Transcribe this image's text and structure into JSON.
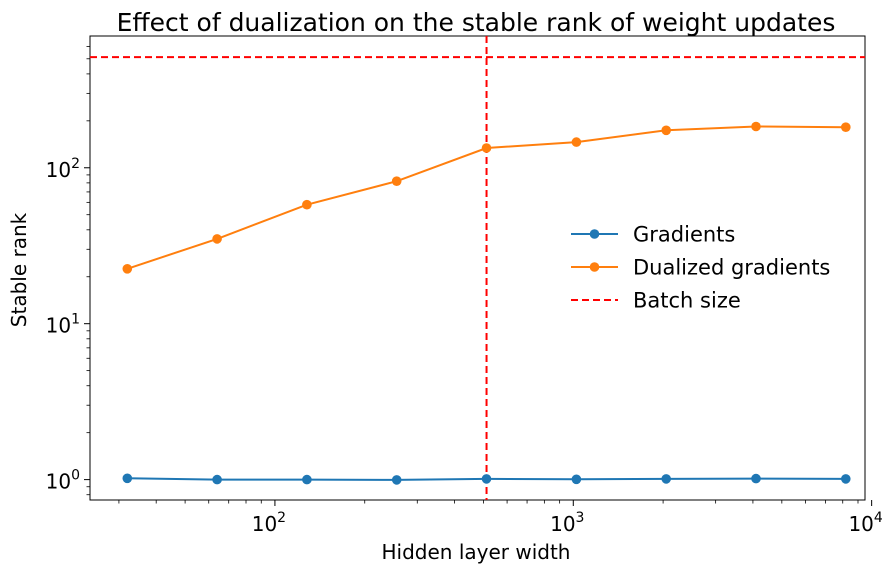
{
  "chart_data": {
    "type": "line",
    "title": "Effect of dualization on the stable rank of weight updates",
    "xlabel": "Hidden layer width",
    "ylabel": "Stable rank",
    "xscale": "log",
    "yscale": "log",
    "xlim": [
      24,
      9500
    ],
    "ylim": [
      0.74,
      700
    ],
    "x": [
      32,
      64,
      128,
      256,
      512,
      1024,
      2048,
      4096,
      8192
    ],
    "series": [
      {
        "name": "Gradients",
        "color": "#1f77b4",
        "marker": "circle",
        "values": [
          1.02,
          1.0,
          1.0,
          0.995,
          1.01,
          1.005,
          1.01,
          1.015,
          1.01
        ]
      },
      {
        "name": "Dualized gradients",
        "color": "#ff7f0e",
        "marker": "circle",
        "values": [
          22.5,
          35,
          58,
          82,
          134,
          146,
          174,
          184,
          182
        ]
      }
    ],
    "reference_lines": [
      {
        "name": "Batch size",
        "orientation": "horizontal",
        "value": 512,
        "color": "#ff0000",
        "style": "dashed"
      },
      {
        "orientation": "vertical",
        "value": 512,
        "color": "#ff0000",
        "style": "dashed"
      }
    ],
    "x_ticks": [
      {
        "value": 100,
        "base": "10",
        "exp": "2"
      },
      {
        "value": 1000,
        "base": "10",
        "exp": "3"
      },
      {
        "value": 10000,
        "base": "10",
        "exp": "4"
      }
    ],
    "y_ticks": [
      {
        "value": 1,
        "base": "10",
        "exp": "0"
      },
      {
        "value": 10,
        "base": "10",
        "exp": "1"
      },
      {
        "value": 100,
        "base": "10",
        "exp": "2"
      }
    ],
    "legend": {
      "position": "center-right",
      "entries": [
        "Gradients",
        "Dualized gradients",
        "Batch size"
      ]
    },
    "grid": false
  }
}
